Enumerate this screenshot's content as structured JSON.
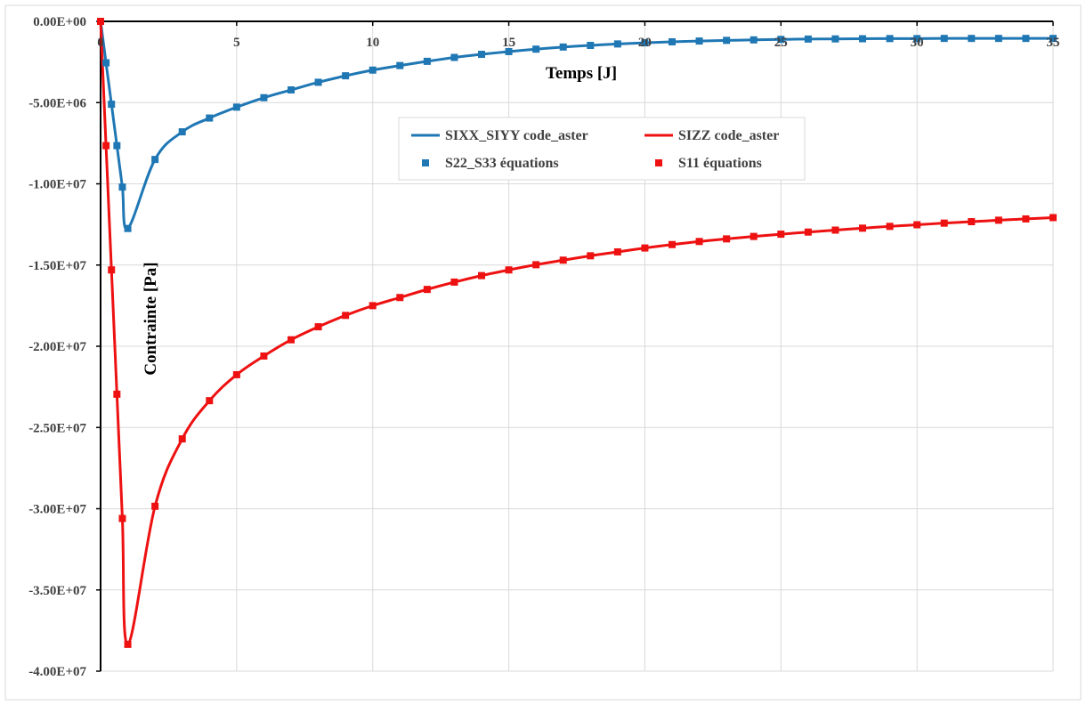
{
  "chart_data": {
    "type": "line",
    "title": "",
    "xlabel": "Temps [J]",
    "ylabel": "Contrainte [Pa]",
    "xlim": [
      0,
      35
    ],
    "ylim": [
      -40000000,
      0
    ],
    "x_ticks": [
      0,
      5,
      10,
      15,
      20,
      25,
      30,
      35
    ],
    "x_tick_labels": [
      "0",
      "5",
      "10",
      "15",
      "20",
      "25",
      "30",
      "35"
    ],
    "y_ticks": [
      0,
      -5000000,
      -10000000,
      -15000000,
      -20000000,
      -25000000,
      -30000000,
      -35000000,
      -40000000
    ],
    "y_tick_labels": [
      "0.00E+00",
      "-5.00E+06",
      "-1.00E+07",
      "-1.50E+07",
      "-2.00E+07",
      "-2.50E+07",
      "-3.00E+07",
      "-3.50E+07",
      "-4.00E+07"
    ],
    "grid": true,
    "legend_position": "upper-center",
    "x": [
      0,
      0.2,
      0.4,
      0.6,
      0.8,
      1,
      2,
      3,
      4,
      5,
      6,
      7,
      8,
      9,
      10,
      11,
      12,
      13,
      14,
      15,
      16,
      17,
      18,
      19,
      20,
      21,
      22,
      23,
      24,
      25,
      26,
      27,
      28,
      29,
      30,
      31,
      32,
      33,
      34,
      35
    ],
    "series": [
      {
        "name": "SIXX_SIYY code_aster",
        "style": "line",
        "color": "#1f77b4",
        "values": [
          0,
          -2550000,
          -5100000,
          -7650000,
          -10200000,
          -12750000,
          -8500000,
          -6800000,
          -5950000,
          -5280000,
          -4700000,
          -4220000,
          -3750000,
          -3350000,
          -3000000,
          -2720000,
          -2460000,
          -2220000,
          -2030000,
          -1860000,
          -1710000,
          -1580000,
          -1480000,
          -1390000,
          -1320000,
          -1260000,
          -1210000,
          -1170000,
          -1140000,
          -1110000,
          -1090000,
          -1080000,
          -1070000,
          -1060000,
          -1060000,
          -1050000,
          -1050000,
          -1050000,
          -1050000,
          -1050000
        ]
      },
      {
        "name": "SIZZ code_aster",
        "style": "line",
        "color": "#ee1111",
        "values": [
          0,
          -7650000,
          -15300000,
          -22950000,
          -30600000,
          -38350000,
          -29850000,
          -25700000,
          -23350000,
          -21750000,
          -20600000,
          -19600000,
          -18800000,
          -18100000,
          -17500000,
          -17000000,
          -16500000,
          -16050000,
          -15650000,
          -15300000,
          -14980000,
          -14700000,
          -14430000,
          -14190000,
          -13950000,
          -13740000,
          -13550000,
          -13390000,
          -13240000,
          -13100000,
          -12970000,
          -12850000,
          -12730000,
          -12620000,
          -12520000,
          -12420000,
          -12330000,
          -12240000,
          -12160000,
          -12080000
        ]
      },
      {
        "name": "S22_S33 équations",
        "style": "markers",
        "color": "#1f77b4",
        "values": [
          0,
          -2550000,
          -5100000,
          -7650000,
          -10200000,
          -12750000,
          -8500000,
          -6800000,
          -5950000,
          -5280000,
          -4700000,
          -4220000,
          -3750000,
          -3350000,
          -3000000,
          -2720000,
          -2460000,
          -2220000,
          -2030000,
          -1860000,
          -1710000,
          -1580000,
          -1480000,
          -1390000,
          -1320000,
          -1260000,
          -1210000,
          -1170000,
          -1140000,
          -1110000,
          -1090000,
          -1080000,
          -1070000,
          -1060000,
          -1060000,
          -1050000,
          -1050000,
          -1050000,
          -1050000,
          -1050000
        ]
      },
      {
        "name": "S11 équations",
        "style": "markers",
        "color": "#ee1111",
        "values": [
          0,
          -7650000,
          -15300000,
          -22950000,
          -30600000,
          -38350000,
          -29850000,
          -25700000,
          -23350000,
          -21750000,
          -20600000,
          -19600000,
          -18800000,
          -18100000,
          -17500000,
          -17000000,
          -16500000,
          -16050000,
          -15650000,
          -15300000,
          -14980000,
          -14700000,
          -14430000,
          -14190000,
          -13950000,
          -13740000,
          -13550000,
          -13390000,
          -13240000,
          -13100000,
          -12970000,
          -12850000,
          -12730000,
          -12620000,
          -12520000,
          -12420000,
          -12330000,
          -12240000,
          -12160000,
          -12080000
        ]
      }
    ]
  }
}
